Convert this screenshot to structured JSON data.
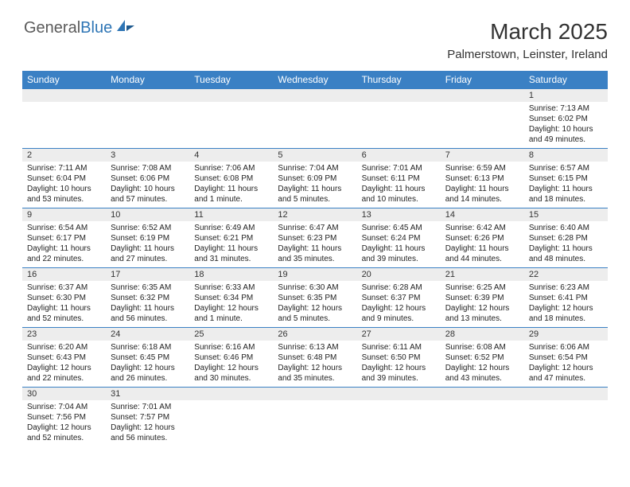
{
  "logo": {
    "part1": "General",
    "part2": "Blue"
  },
  "title": "March 2025",
  "location": "Palmerstown, Leinster, Ireland",
  "colors": {
    "header_bg": "#3a80c4",
    "header_text": "#ffffff",
    "daynum_bg": "#ededed",
    "border": "#3a80c4",
    "text": "#222222"
  },
  "weekdays": [
    "Sunday",
    "Monday",
    "Tuesday",
    "Wednesday",
    "Thursday",
    "Friday",
    "Saturday"
  ],
  "weeks": [
    [
      null,
      null,
      null,
      null,
      null,
      null,
      {
        "d": "1",
        "sr": "7:13 AM",
        "ss": "6:02 PM",
        "dl": "10 hours and 49 minutes."
      }
    ],
    [
      {
        "d": "2",
        "sr": "7:11 AM",
        "ss": "6:04 PM",
        "dl": "10 hours and 53 minutes."
      },
      {
        "d": "3",
        "sr": "7:08 AM",
        "ss": "6:06 PM",
        "dl": "10 hours and 57 minutes."
      },
      {
        "d": "4",
        "sr": "7:06 AM",
        "ss": "6:08 PM",
        "dl": "11 hours and 1 minute."
      },
      {
        "d": "5",
        "sr": "7:04 AM",
        "ss": "6:09 PM",
        "dl": "11 hours and 5 minutes."
      },
      {
        "d": "6",
        "sr": "7:01 AM",
        "ss": "6:11 PM",
        "dl": "11 hours and 10 minutes."
      },
      {
        "d": "7",
        "sr": "6:59 AM",
        "ss": "6:13 PM",
        "dl": "11 hours and 14 minutes."
      },
      {
        "d": "8",
        "sr": "6:57 AM",
        "ss": "6:15 PM",
        "dl": "11 hours and 18 minutes."
      }
    ],
    [
      {
        "d": "9",
        "sr": "6:54 AM",
        "ss": "6:17 PM",
        "dl": "11 hours and 22 minutes."
      },
      {
        "d": "10",
        "sr": "6:52 AM",
        "ss": "6:19 PM",
        "dl": "11 hours and 27 minutes."
      },
      {
        "d": "11",
        "sr": "6:49 AM",
        "ss": "6:21 PM",
        "dl": "11 hours and 31 minutes."
      },
      {
        "d": "12",
        "sr": "6:47 AM",
        "ss": "6:23 PM",
        "dl": "11 hours and 35 minutes."
      },
      {
        "d": "13",
        "sr": "6:45 AM",
        "ss": "6:24 PM",
        "dl": "11 hours and 39 minutes."
      },
      {
        "d": "14",
        "sr": "6:42 AM",
        "ss": "6:26 PM",
        "dl": "11 hours and 44 minutes."
      },
      {
        "d": "15",
        "sr": "6:40 AM",
        "ss": "6:28 PM",
        "dl": "11 hours and 48 minutes."
      }
    ],
    [
      {
        "d": "16",
        "sr": "6:37 AM",
        "ss": "6:30 PM",
        "dl": "11 hours and 52 minutes."
      },
      {
        "d": "17",
        "sr": "6:35 AM",
        "ss": "6:32 PM",
        "dl": "11 hours and 56 minutes."
      },
      {
        "d": "18",
        "sr": "6:33 AM",
        "ss": "6:34 PM",
        "dl": "12 hours and 1 minute."
      },
      {
        "d": "19",
        "sr": "6:30 AM",
        "ss": "6:35 PM",
        "dl": "12 hours and 5 minutes."
      },
      {
        "d": "20",
        "sr": "6:28 AM",
        "ss": "6:37 PM",
        "dl": "12 hours and 9 minutes."
      },
      {
        "d": "21",
        "sr": "6:25 AM",
        "ss": "6:39 PM",
        "dl": "12 hours and 13 minutes."
      },
      {
        "d": "22",
        "sr": "6:23 AM",
        "ss": "6:41 PM",
        "dl": "12 hours and 18 minutes."
      }
    ],
    [
      {
        "d": "23",
        "sr": "6:20 AM",
        "ss": "6:43 PM",
        "dl": "12 hours and 22 minutes."
      },
      {
        "d": "24",
        "sr": "6:18 AM",
        "ss": "6:45 PM",
        "dl": "12 hours and 26 minutes."
      },
      {
        "d": "25",
        "sr": "6:16 AM",
        "ss": "6:46 PM",
        "dl": "12 hours and 30 minutes."
      },
      {
        "d": "26",
        "sr": "6:13 AM",
        "ss": "6:48 PM",
        "dl": "12 hours and 35 minutes."
      },
      {
        "d": "27",
        "sr": "6:11 AM",
        "ss": "6:50 PM",
        "dl": "12 hours and 39 minutes."
      },
      {
        "d": "28",
        "sr": "6:08 AM",
        "ss": "6:52 PM",
        "dl": "12 hours and 43 minutes."
      },
      {
        "d": "29",
        "sr": "6:06 AM",
        "ss": "6:54 PM",
        "dl": "12 hours and 47 minutes."
      }
    ],
    [
      {
        "d": "30",
        "sr": "7:04 AM",
        "ss": "7:56 PM",
        "dl": "12 hours and 52 minutes."
      },
      {
        "d": "31",
        "sr": "7:01 AM",
        "ss": "7:57 PM",
        "dl": "12 hours and 56 minutes."
      },
      null,
      null,
      null,
      null,
      null
    ]
  ],
  "labels": {
    "sunrise": "Sunrise:",
    "sunset": "Sunset:",
    "daylight": "Daylight:"
  }
}
